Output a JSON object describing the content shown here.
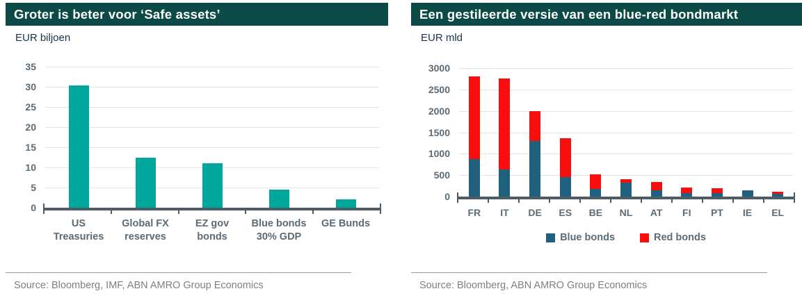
{
  "colors": {
    "header_bg": "#0c4a48",
    "header_text": "#ffffff",
    "teal_bar": "#00a79b",
    "blue_bar": "#1f607f",
    "red_bar": "#f90d0d",
    "axis_line": "#4d5d68",
    "gridline": "#e3e3e3",
    "tick_text": "#5a6b78",
    "unit_text": "#17324a",
    "source_text": "#7f7f7f",
    "divider": "#9a9a9a"
  },
  "panels": [
    {
      "title": "Groter is beter voor ‘Safe assets’",
      "unit_label": "EUR biljoen",
      "source": "Source: Bloomberg, IMF, ABN AMRO Group Economics"
    },
    {
      "title": "Een gestileerde versie van een blue-red bondmarkt",
      "unit_label": "EUR mld",
      "source": "Source: Bloomberg, ABN AMRO Group Economics"
    }
  ],
  "chart_data": [
    {
      "type": "bar",
      "title": "Groter is beter voor ‘Safe assets’",
      "ylabel": "EUR biljoen",
      "xlabel": "",
      "categories": [
        "US\nTreasuries",
        "Global FX\nreserves",
        "EZ gov\nbonds",
        "Blue bonds\n30% GDP",
        "GE Bunds"
      ],
      "values": [
        30.3,
        12.5,
        11,
        4.5,
        2
      ],
      "bar_color": "#00a79b",
      "ylim": [
        0,
        35
      ],
      "yticks": [
        0,
        5,
        10,
        15,
        20,
        25,
        30,
        35
      ],
      "grid": true,
      "legend": "none"
    },
    {
      "type": "stacked-bar",
      "title": "Een gestileerde versie van een blue-red bondmarkt",
      "ylabel": "EUR mld",
      "xlabel": "",
      "categories": [
        "FR",
        "IT",
        "DE",
        "ES",
        "BE",
        "NL",
        "AT",
        "FI",
        "PT",
        "IE",
        "EL"
      ],
      "series": [
        {
          "name": "Blue bonds",
          "color": "#1f607f",
          "values": [
            870,
            630,
            1290,
            460,
            180,
            330,
            140,
            85,
            80,
            150,
            65
          ]
        },
        {
          "name": "Red bonds",
          "color": "#f90d0d",
          "values": [
            1930,
            2120,
            700,
            910,
            340,
            70,
            200,
            125,
            120,
            0,
            55
          ]
        }
      ],
      "totals": [
        2800,
        2750,
        1990,
        1370,
        520,
        400,
        340,
        210,
        200,
        150,
        120
      ],
      "ylim": [
        0,
        3000
      ],
      "yticks": [
        0,
        500,
        1000,
        1500,
        2000,
        2500,
        3000
      ],
      "grid": true,
      "legend": "bottom"
    }
  ]
}
